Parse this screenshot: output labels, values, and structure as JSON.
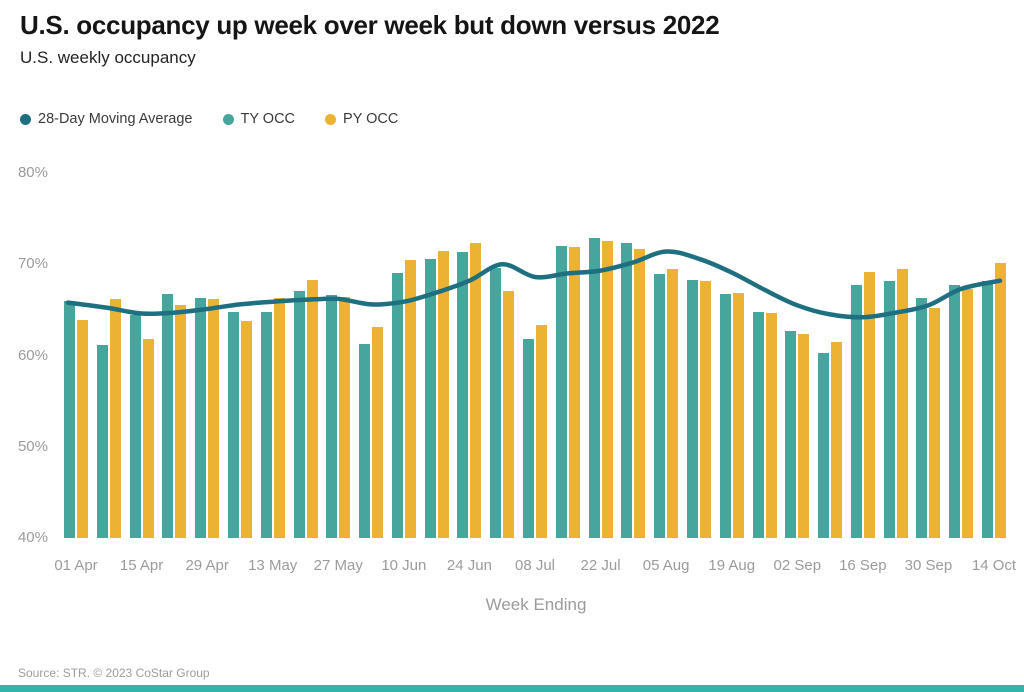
{
  "header": {
    "title": "U.S. occupancy up week over week but down versus 2022",
    "subtitle": "U.S. weekly occupancy"
  },
  "legend": {
    "items": [
      {
        "label": "28-Day Moving Average",
        "color": "#1e6f80"
      },
      {
        "label": "TY OCC",
        "color": "#46a69e"
      },
      {
        "label": "PY OCC",
        "color": "#ecb233"
      }
    ]
  },
  "chart_data": {
    "type": "bar",
    "title": "U.S. occupancy up week over week but down versus 2022",
    "subtitle": "U.S. weekly occupancy",
    "xlabel": "Week Ending",
    "ylabel": "",
    "ylim": [
      40,
      80
    ],
    "grid": false,
    "legend_position": "top-left",
    "unit": "%",
    "categories": [
      "01 Apr",
      "08 Apr",
      "15 Apr",
      "22 Apr",
      "29 Apr",
      "06 May",
      "13 May",
      "20 May",
      "27 May",
      "03 Jun",
      "10 Jun",
      "17 Jun",
      "24 Jun",
      "01 Jul",
      "08 Jul",
      "15 Jul",
      "22 Jul",
      "29 Jul",
      "05 Aug",
      "12 Aug",
      "19 Aug",
      "26 Aug",
      "02 Sep",
      "09 Sep",
      "16 Sep",
      "23 Sep",
      "30 Sep",
      "07 Oct",
      "14 Oct"
    ],
    "x_tick_labels": [
      "01 Apr",
      "15 Apr",
      "29 Apr",
      "13 May",
      "27 May",
      "10 Jun",
      "24 Jun",
      "08 Jul",
      "22 Jul",
      "05 Aug",
      "19 Aug",
      "02 Sep",
      "16 Sep",
      "30 Sep",
      "14 Oct"
    ],
    "x_tick_every": 2,
    "yticks": [
      {
        "label": "80%",
        "value": 80
      },
      {
        "label": "70%",
        "value": 70
      },
      {
        "label": "60%",
        "value": 60
      },
      {
        "label": "50%",
        "value": 50
      },
      {
        "label": "40%",
        "value": 40
      }
    ],
    "series": [
      {
        "name": "TY OCC",
        "type": "bar",
        "color": "#46a69e",
        "values": [
          66.0,
          61.2,
          64.4,
          66.8,
          66.3,
          64.8,
          64.8,
          67.1,
          66.6,
          61.3,
          69.1,
          70.6,
          71.3,
          69.6,
          61.8,
          72.0,
          72.9,
          72.3,
          68.9,
          68.3,
          66.8,
          64.8,
          62.7,
          60.3,
          67.7,
          68.2,
          66.3,
          67.7,
          68.2
        ]
      },
      {
        "name": "PY OCC",
        "type": "bar",
        "color": "#ecb233",
        "values": [
          63.9,
          66.2,
          61.8,
          65.5,
          66.2,
          63.8,
          66.3,
          68.3,
          66.4,
          63.1,
          70.5,
          71.5,
          72.3,
          67.1,
          63.3,
          71.9,
          72.6,
          71.7,
          69.5,
          68.2,
          66.9,
          64.7,
          62.4,
          61.5,
          69.2,
          69.5,
          65.2,
          67.3,
          70.1
        ]
      },
      {
        "name": "28-Day Moving Average",
        "type": "line",
        "color": "#1e6f80",
        "values": [
          65.8,
          65.2,
          64.6,
          64.7,
          65.1,
          65.6,
          65.9,
          66.1,
          66.2,
          65.6,
          65.9,
          66.9,
          68.2,
          70.0,
          68.6,
          69.0,
          69.3,
          70.2,
          71.4,
          70.6,
          69.1,
          67.2,
          65.5,
          64.5,
          64.2,
          64.7,
          65.5,
          67.3,
          68.2
        ]
      }
    ]
  },
  "footer": {
    "source": "Source: STR. © 2023 CoStar Group",
    "bar_color": "#32b4aa"
  }
}
